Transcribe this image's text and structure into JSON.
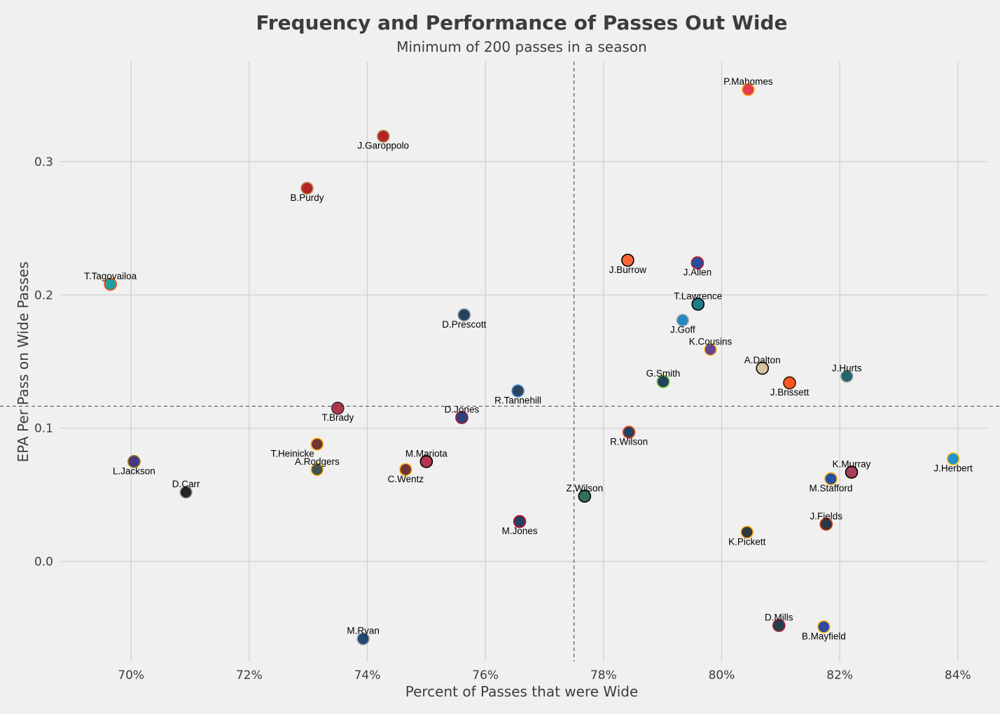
{
  "chart_data": {
    "type": "scatter",
    "title": "Frequency and Performance of Passes Out Wide",
    "subtitle": "Minimum of 200 passes in a season",
    "xlabel": "Percent of Passes that were Wide",
    "ylabel": "EPA Per Pass on Wide Passes",
    "xlim": [
      68.8,
      84.5
    ],
    "ylim": [
      -0.075,
      0.375
    ],
    "x_ticks": [
      70,
      72,
      74,
      76,
      78,
      80,
      82,
      84
    ],
    "x_tick_labels": [
      "70%",
      "72%",
      "74%",
      "76%",
      "78%",
      "80%",
      "82%",
      "84%"
    ],
    "y_ticks": [
      0.0,
      0.1,
      0.2,
      0.3
    ],
    "y_tick_labels": [
      "0.0",
      "0.1",
      "0.2",
      "0.3"
    ],
    "mean_x": 77.5,
    "mean_y": 0.1165,
    "points": [
      {
        "name": "P.Mahomes",
        "x": 80.45,
        "y": 0.354,
        "color": "#e31837",
        "edge": "#ffb612",
        "label_pos": "above"
      },
      {
        "name": "J.Garoppolo",
        "x": 74.27,
        "y": 0.319,
        "color": "#aa0000",
        "edge": "#b3995d",
        "label_pos": "below"
      },
      {
        "name": "B.Purdy",
        "x": 72.98,
        "y": 0.28,
        "color": "#aa0000",
        "edge": "#b3995d",
        "label_pos": "below"
      },
      {
        "name": "T.Tagovailoa",
        "x": 69.65,
        "y": 0.208,
        "color": "#008e97",
        "edge": "#fc4c02",
        "label_pos": "above"
      },
      {
        "name": "J.Burrow",
        "x": 78.41,
        "y": 0.226,
        "color": "#fb4f14",
        "edge": "#000000",
        "label_pos": "below"
      },
      {
        "name": "J.Allen",
        "x": 79.59,
        "y": 0.224,
        "color": "#00338d",
        "edge": "#c60c30",
        "label_pos": "below"
      },
      {
        "name": "T.Lawrence",
        "x": 79.6,
        "y": 0.193,
        "color": "#006778",
        "edge": "#000000",
        "label_pos": "above"
      },
      {
        "name": "D.Prescott",
        "x": 75.64,
        "y": 0.185,
        "color": "#002244",
        "edge": "#869397",
        "label_pos": "below"
      },
      {
        "name": "J.Goff",
        "x": 79.34,
        "y": 0.181,
        "color": "#0076b6",
        "edge": "#b0b7bc",
        "label_pos": "below"
      },
      {
        "name": "K.Cousins",
        "x": 79.81,
        "y": 0.159,
        "color": "#4f2683",
        "edge": "#ffc62f",
        "label_pos": "above"
      },
      {
        "name": "A.Dalton",
        "x": 80.69,
        "y": 0.145,
        "color": "#d3bc8d",
        "edge": "#000000",
        "label_pos": "above"
      },
      {
        "name": "J.Hurts",
        "x": 82.12,
        "y": 0.139,
        "color": "#004c54",
        "edge": "#a5acaf",
        "label_pos": "above"
      },
      {
        "name": "G.Smith",
        "x": 79.01,
        "y": 0.135,
        "color": "#002244",
        "edge": "#69be28",
        "label_pos": "above"
      },
      {
        "name": "J.Brissett",
        "x": 81.15,
        "y": 0.134,
        "color": "#ff3c00",
        "edge": "#311d00",
        "label_pos": "below"
      },
      {
        "name": "R.Tannehill",
        "x": 76.55,
        "y": 0.128,
        "color": "#0c2340",
        "edge": "#4b92db",
        "label_pos": "below"
      },
      {
        "name": "T.Brady",
        "x": 73.5,
        "y": 0.115,
        "color": "#a71930",
        "edge": "#322f2b",
        "label_pos": "below"
      },
      {
        "name": "D.Jones",
        "x": 75.6,
        "y": 0.108,
        "color": "#0b2265",
        "edge": "#a71930",
        "label_pos": "above"
      },
      {
        "name": "R.Wilson",
        "x": 78.43,
        "y": 0.097,
        "color": "#002244",
        "edge": "#fb4f14",
        "label_pos": "below"
      },
      {
        "name": "T.Heinicke",
        "x": 73.15,
        "y": 0.088,
        "color": "#5a1414",
        "edge": "#ffb612",
        "label_pos": "below-left"
      },
      {
        "name": "J.Herbert",
        "x": 83.92,
        "y": 0.077,
        "color": "#0080c6",
        "edge": "#ffc20e",
        "label_pos": "below"
      },
      {
        "name": "L.Jackson",
        "x": 70.05,
        "y": 0.075,
        "color": "#241773",
        "edge": "#9e7c0c",
        "label_pos": "below"
      },
      {
        "name": "M.Mariota",
        "x": 75.0,
        "y": 0.075,
        "color": "#a71930",
        "edge": "#000000",
        "label_pos": "above"
      },
      {
        "name": "A.Rodgers",
        "x": 73.15,
        "y": 0.069,
        "color": "#203731",
        "edge": "#ffb612",
        "label_pos": "above"
      },
      {
        "name": "C.Wentz",
        "x": 74.65,
        "y": 0.069,
        "color": "#5a1414",
        "edge": "#ffb612",
        "label_pos": "below"
      },
      {
        "name": "K.Murray",
        "x": 82.2,
        "y": 0.067,
        "color": "#97233f",
        "edge": "#000000",
        "label_pos": "above"
      },
      {
        "name": "M.Stafford",
        "x": 81.85,
        "y": 0.062,
        "color": "#003594",
        "edge": "#ffa300",
        "label_pos": "below"
      },
      {
        "name": "D.Carr",
        "x": 70.93,
        "y": 0.052,
        "color": "#000000",
        "edge": "#a5acaf",
        "label_pos": "above"
      },
      {
        "name": "Z.Wilson",
        "x": 77.68,
        "y": 0.049,
        "color": "#125740",
        "edge": "#000000",
        "label_pos": "above"
      },
      {
        "name": "M.Jones",
        "x": 76.58,
        "y": 0.03,
        "color": "#002244",
        "edge": "#c60c30",
        "label_pos": "below"
      },
      {
        "name": "J.Fields",
        "x": 81.77,
        "y": 0.028,
        "color": "#0b162a",
        "edge": "#c83803",
        "label_pos": "above"
      },
      {
        "name": "K.Pickett",
        "x": 80.43,
        "y": 0.022,
        "color": "#101820",
        "edge": "#ffb612",
        "label_pos": "below"
      },
      {
        "name": "D.Mills",
        "x": 80.97,
        "y": -0.048,
        "color": "#03202f",
        "edge": "#a71930",
        "label_pos": "above"
      },
      {
        "name": "B.Mayfield",
        "x": 81.73,
        "y": -0.049,
        "color": "#0c2c94",
        "edge": "#ffb612",
        "label_pos": "below"
      },
      {
        "name": "M.Ryan",
        "x": 73.93,
        "y": -0.058,
        "color": "#002c5f",
        "edge": "#a2aaad",
        "label_pos": "above"
      }
    ]
  }
}
